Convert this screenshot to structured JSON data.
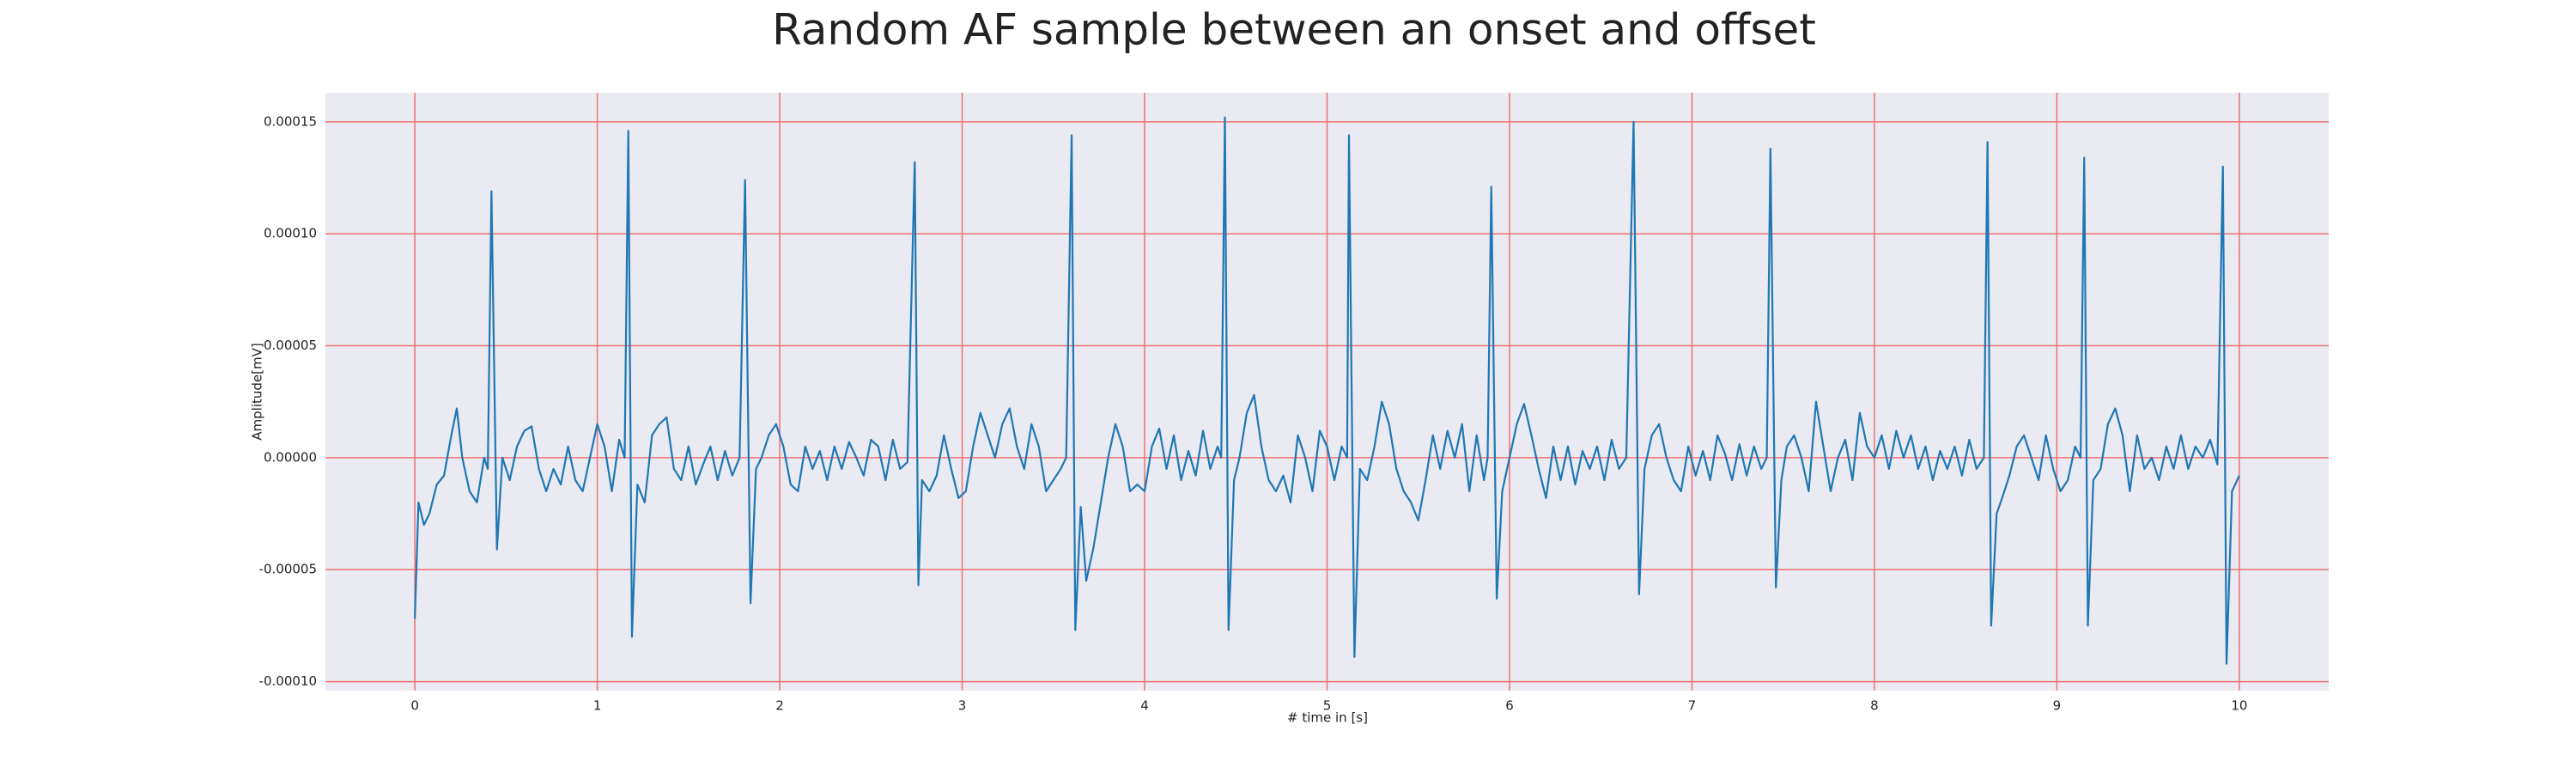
{
  "chart_data": {
    "type": "line",
    "title": "Random AF sample between an onset and offset",
    "xlabel": "# time in [s]",
    "ylabel": "Amplitude[mV]",
    "xlim": [
      -0.49,
      10.49
    ],
    "ylim": [
      -0.000104,
      0.000163
    ],
    "xticks": [
      0,
      1,
      2,
      3,
      4,
      5,
      6,
      7,
      8,
      9,
      10
    ],
    "yticks": [
      {
        "value": -0.0001,
        "label": "-0.00010"
      },
      {
        "value": -5e-05,
        "label": "-0.00005"
      },
      {
        "value": 0,
        "label": "0.00000"
      },
      {
        "value": 5e-05,
        "label": "0.00005"
      },
      {
        "value": 0.0001,
        "label": "0.00010"
      },
      {
        "value": 0.00015,
        "label": "0.00015"
      }
    ],
    "grid": true,
    "grid_color": "#f07070",
    "background": "#eaeaf2",
    "color": "#1f77b4",
    "x": [
      0,
      0.02,
      0.05,
      0.08,
      0.12,
      0.16,
      0.2,
      0.23,
      0.26,
      0.3,
      0.34,
      0.38,
      0.4,
      0.42,
      0.45,
      0.48,
      0.52,
      0.56,
      0.6,
      0.64,
      0.68,
      0.72,
      0.76,
      0.8,
      0.84,
      0.88,
      0.92,
      0.96,
      1.0,
      1.04,
      1.08,
      1.12,
      1.15,
      1.17,
      1.19,
      1.22,
      1.26,
      1.3,
      1.34,
      1.38,
      1.42,
      1.46,
      1.5,
      1.54,
      1.58,
      1.62,
      1.66,
      1.7,
      1.74,
      1.78,
      1.81,
      1.84,
      1.87,
      1.9,
      1.94,
      1.98,
      2.02,
      2.06,
      2.1,
      2.14,
      2.18,
      2.22,
      2.26,
      2.3,
      2.34,
      2.38,
      2.42,
      2.46,
      2.5,
      2.54,
      2.58,
      2.62,
      2.66,
      2.7,
      2.74,
      2.76,
      2.78,
      2.82,
      2.86,
      2.9,
      2.94,
      2.98,
      3.02,
      3.06,
      3.1,
      3.14,
      3.18,
      3.22,
      3.26,
      3.3,
      3.34,
      3.38,
      3.42,
      3.46,
      3.5,
      3.54,
      3.57,
      3.6,
      3.62,
      3.65,
      3.68,
      3.72,
      3.76,
      3.8,
      3.84,
      3.88,
      3.92,
      3.96,
      4.0,
      4.04,
      4.08,
      4.12,
      4.16,
      4.2,
      4.24,
      4.28,
      4.32,
      4.36,
      4.4,
      4.42,
      4.44,
      4.46,
      4.49,
      4.52,
      4.56,
      4.6,
      4.64,
      4.68,
      4.72,
      4.76,
      4.8,
      4.84,
      4.88,
      4.92,
      4.96,
      5.0,
      5.04,
      5.08,
      5.11,
      5.12,
      5.15,
      5.18,
      5.22,
      5.26,
      5.3,
      5.34,
      5.38,
      5.42,
      5.46,
      5.5,
      5.54,
      5.58,
      5.62,
      5.66,
      5.7,
      5.74,
      5.78,
      5.82,
      5.86,
      5.88,
      5.9,
      5.93,
      5.96,
      6.0,
      6.04,
      6.08,
      6.12,
      6.16,
      6.2,
      6.24,
      6.28,
      6.32,
      6.36,
      6.4,
      6.44,
      6.48,
      6.52,
      6.56,
      6.6,
      6.64,
      6.68,
      6.71,
      6.74,
      6.78,
      6.82,
      6.86,
      6.9,
      6.94,
      6.98,
      7.02,
      7.06,
      7.1,
      7.14,
      7.18,
      7.22,
      7.26,
      7.3,
      7.34,
      7.38,
      7.41,
      7.43,
      7.46,
      7.49,
      7.52,
      7.56,
      7.6,
      7.64,
      7.68,
      7.72,
      7.76,
      7.8,
      7.84,
      7.88,
      7.92,
      7.96,
      8.0,
      8.04,
      8.08,
      8.12,
      8.16,
      8.2,
      8.24,
      8.28,
      8.32,
      8.36,
      8.4,
      8.44,
      8.48,
      8.52,
      8.56,
      8.6,
      8.62,
      8.64,
      8.67,
      8.7,
      8.74,
      8.78,
      8.82,
      8.86,
      8.9,
      8.94,
      8.98,
      9.02,
      9.06,
      9.1,
      9.13,
      9.15,
      9.17,
      9.2,
      9.24,
      9.28,
      9.32,
      9.36,
      9.4,
      9.44,
      9.48,
      9.52,
      9.56,
      9.6,
      9.64,
      9.68,
      9.72,
      9.76,
      9.8,
      9.84,
      9.88,
      9.91,
      9.93,
      9.96,
      10.0
    ],
    "values": [
      -7.2e-05,
      -2e-05,
      -3e-05,
      -2.5e-05,
      -1.2e-05,
      -8e-06,
      1e-05,
      2.2e-05,
      0,
      -1.5e-05,
      -2e-05,
      0,
      -5e-06,
      0.000119,
      -4.1e-05,
      0,
      -1e-05,
      5e-06,
      1.2e-05,
      1.4e-05,
      -5e-06,
      -1.5e-05,
      -5e-06,
      -1.2e-05,
      5e-06,
      -1e-05,
      -1.5e-05,
      0,
      1.5e-05,
      5e-06,
      -1.5e-05,
      8e-06,
      0,
      0.000146,
      -8e-05,
      -1.2e-05,
      -2e-05,
      1e-05,
      1.5e-05,
      1.8e-05,
      -5e-06,
      -1e-05,
      5e-06,
      -1.2e-05,
      -3e-06,
      5e-06,
      -1e-05,
      3e-06,
      -8e-06,
      0,
      0.000124,
      -6.5e-05,
      -5e-06,
      0,
      1e-05,
      1.5e-05,
      5e-06,
      -1.2e-05,
      -1.5e-05,
      5e-06,
      -5e-06,
      3e-06,
      -1e-05,
      5e-06,
      -5e-06,
      7e-06,
      0,
      -8e-06,
      8e-06,
      5e-06,
      -1e-05,
      8e-06,
      -5e-06,
      -2e-06,
      0.000132,
      -5.7e-05,
      -1e-05,
      -1.5e-05,
      -8e-06,
      1e-05,
      -5e-06,
      -1.8e-05,
      -1.5e-05,
      5e-06,
      2e-05,
      1e-05,
      0,
      1.5e-05,
      2.2e-05,
      5e-06,
      -5e-06,
      1.5e-05,
      5e-06,
      -1.5e-05,
      -1e-05,
      -5e-06,
      0,
      0.000144,
      -7.7e-05,
      -2.2e-05,
      -5.5e-05,
      -4e-05,
      -2e-05,
      0,
      1.5e-05,
      5e-06,
      -1.5e-05,
      -1.2e-05,
      -1.5e-05,
      5e-06,
      1.3e-05,
      -5e-06,
      1e-05,
      -1e-05,
      3e-06,
      -8e-06,
      1.2e-05,
      -5e-06,
      5e-06,
      0,
      0.000152,
      -7.7e-05,
      -1e-05,
      0,
      2e-05,
      2.8e-05,
      5e-06,
      -1e-05,
      -1.5e-05,
      -8e-06,
      -2e-05,
      1e-05,
      0,
      -1.5e-05,
      1.2e-05,
      5e-06,
      -1e-05,
      5e-06,
      0,
      0.000144,
      -8.9e-05,
      -5e-06,
      -1e-05,
      5e-06,
      2.5e-05,
      1.5e-05,
      -5e-06,
      -1.5e-05,
      -2e-05,
      -2.8e-05,
      -1e-05,
      1e-05,
      -5e-06,
      1.2e-05,
      0,
      1.5e-05,
      -1.5e-05,
      1e-05,
      -1e-05,
      0,
      0.000121,
      -6.3e-05,
      -1.5e-05,
      0,
      1.5e-05,
      2.4e-05,
      1e-05,
      -5e-06,
      -1.8e-05,
      5e-06,
      -1e-05,
      5e-06,
      -1.2e-05,
      3e-06,
      -5e-06,
      5e-06,
      -1e-05,
      8e-06,
      -5e-06,
      0,
      0.00015,
      -6.1e-05,
      -5e-06,
      1e-05,
      1.5e-05,
      0,
      -1e-05,
      -1.5e-05,
      5e-06,
      -8e-06,
      3e-06,
      -1e-05,
      1e-05,
      2e-06,
      -1e-05,
      6e-06,
      -8e-06,
      5e-06,
      -5e-06,
      0,
      0.000138,
      -5.8e-05,
      -1e-05,
      5e-06,
      1e-05,
      0,
      -1.5e-05,
      2.5e-05,
      5e-06,
      -1.5e-05,
      0,
      8e-06,
      -1e-05,
      2e-05,
      5e-06,
      0,
      1e-05,
      -5e-06,
      1.2e-05,
      0,
      1e-05,
      -5e-06,
      5e-06,
      -1e-05,
      3e-06,
      -5e-06,
      5e-06,
      -8e-06,
      8e-06,
      -5e-06,
      0,
      0.000141,
      -7.5e-05,
      -2.5e-05,
      -1.8e-05,
      -8e-06,
      5e-06,
      1e-05,
      0,
      -1e-05,
      1e-05,
      -5e-06,
      -1.5e-05,
      -1e-05,
      5e-06,
      0,
      0.000134,
      -7.5e-05,
      -1e-05,
      -5e-06,
      1.5e-05,
      2.2e-05,
      1e-05,
      -1.5e-05,
      1e-05,
      -5e-06,
      0,
      -1e-05,
      5e-06,
      -5e-06,
      1e-05,
      -5e-06,
      5e-06,
      0,
      8e-06,
      -3e-06,
      0.00013,
      -9.2e-05,
      -1.5e-05,
      -8e-06
    ]
  }
}
